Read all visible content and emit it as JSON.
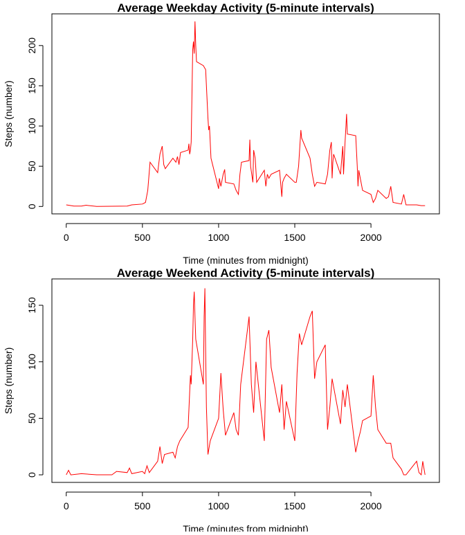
{
  "chart_data": [
    {
      "type": "line",
      "title": "Average Weekday Activity (5-minute intervals)",
      "x_label": "Time (minutes from midnight)",
      "y_label": "Steps (number)",
      "x": [
        0,
        50,
        100,
        130,
        200,
        300,
        400,
        430,
        500,
        520,
        535,
        550,
        600,
        615,
        630,
        640,
        650,
        700,
        720,
        730,
        740,
        750,
        800,
        805,
        810,
        815,
        820,
        830,
        835,
        840,
        845,
        850,
        855,
        900,
        915,
        930,
        935,
        940,
        950,
        1000,
        1005,
        1015,
        1030,
        1040,
        1045,
        1100,
        1115,
        1130,
        1140,
        1150,
        1200,
        1205,
        1210,
        1225,
        1230,
        1240,
        1250,
        1300,
        1310,
        1320,
        1330,
        1345,
        1400,
        1415,
        1420,
        1430,
        1445,
        1500,
        1510,
        1525,
        1540,
        1545,
        1600,
        1615,
        1630,
        1645,
        1700,
        1715,
        1730,
        1740,
        1745,
        1750,
        1755,
        1800,
        1815,
        1820,
        1830,
        1840,
        1845,
        1900,
        1910,
        1915,
        1920,
        1930,
        1945,
        2000,
        2015,
        2030,
        2045,
        2100,
        2115,
        2130,
        2145,
        2200,
        2215,
        2230,
        2300,
        2330,
        2355
      ],
      "series": [
        {
          "name": "weekday",
          "color": "#ff0000",
          "values": [
            2,
            0.5,
            0.5,
            1.5,
            0,
            0.3,
            0.5,
            2,
            3,
            5,
            20,
            55,
            42,
            65,
            75,
            52,
            47,
            60,
            55,
            62,
            52,
            67,
            70,
            78,
            65,
            70,
            80,
            195,
            205,
            190,
            230,
            200,
            180,
            175,
            170,
            110,
            95,
            100,
            60,
            22,
            35,
            25,
            40,
            46,
            30,
            28,
            20,
            15,
            40,
            55,
            57,
            83,
            50,
            30,
            70,
            60,
            30,
            45,
            25,
            40,
            35,
            40,
            45,
            12,
            30,
            35,
            40,
            30,
            30,
            50,
            95,
            85,
            60,
            40,
            25,
            30,
            28,
            40,
            70,
            80,
            35,
            55,
            65,
            40,
            75,
            40,
            80,
            115,
            90,
            88,
            50,
            25,
            45,
            35,
            20,
            15,
            5,
            10,
            20,
            10,
            12,
            25,
            5,
            3,
            15,
            2,
            2,
            1,
            1
          ]
        }
      ],
      "xlim": [
        -94.2,
        2449.2
      ],
      "xticks": [
        0,
        500,
        1000,
        1500,
        2000
      ],
      "ylim": [
        -9.2,
        239.4
      ],
      "yticks": [
        0,
        50,
        100,
        150,
        200
      ]
    },
    {
      "type": "line",
      "title": "Average Weekend Activity (5-minute intervals)",
      "x_label": "Time (minutes from midnight)",
      "y_label": "Steps (number)",
      "x": [
        0,
        15,
        30,
        100,
        200,
        300,
        330,
        400,
        415,
        430,
        500,
        515,
        530,
        545,
        600,
        615,
        630,
        645,
        700,
        715,
        730,
        745,
        800,
        815,
        820,
        830,
        835,
        840,
        845,
        850,
        900,
        905,
        910,
        915,
        920,
        930,
        945,
        1000,
        1015,
        1030,
        1045,
        1100,
        1115,
        1130,
        1145,
        1200,
        1215,
        1230,
        1245,
        1300,
        1315,
        1330,
        1345,
        1400,
        1415,
        1430,
        1445,
        1500,
        1515,
        1530,
        1545,
        1600,
        1615,
        1630,
        1645,
        1700,
        1715,
        1730,
        1745,
        1800,
        1815,
        1830,
        1845,
        1900,
        1915,
        1930,
        1945,
        2000,
        2015,
        2030,
        2045,
        2100,
        2130,
        2145,
        2200,
        2215,
        2230,
        2300,
        2315,
        2330,
        2340,
        2355
      ],
      "series": [
        {
          "name": "weekend",
          "color": "#ff0000",
          "values": [
            0,
            4,
            0,
            1,
            0,
            0,
            3,
            2,
            6,
            1,
            3,
            1,
            8,
            2,
            12,
            25,
            10,
            18,
            20,
            15,
            25,
            30,
            42,
            88,
            80,
            120,
            150,
            162,
            140,
            120,
            80,
            140,
            165,
            110,
            60,
            18,
            30,
            50,
            90,
            58,
            35,
            55,
            40,
            35,
            80,
            140,
            80,
            55,
            100,
            30,
            120,
            128,
            95,
            55,
            80,
            40,
            65,
            30,
            90,
            125,
            115,
            140,
            145,
            85,
            100,
            115,
            40,
            60,
            85,
            45,
            75,
            60,
            80,
            20,
            30,
            38,
            48,
            52,
            88,
            60,
            40,
            28,
            28,
            15,
            5,
            0,
            0,
            12,
            2,
            0,
            12,
            0
          ]
        }
      ],
      "xlim": [
        -94.2,
        2449.2
      ],
      "xticks": [
        0,
        500,
        1000,
        1500,
        2000
      ],
      "ylim": [
        -6.7,
        173.3
      ],
      "yticks": [
        0,
        50,
        100,
        150
      ]
    }
  ]
}
